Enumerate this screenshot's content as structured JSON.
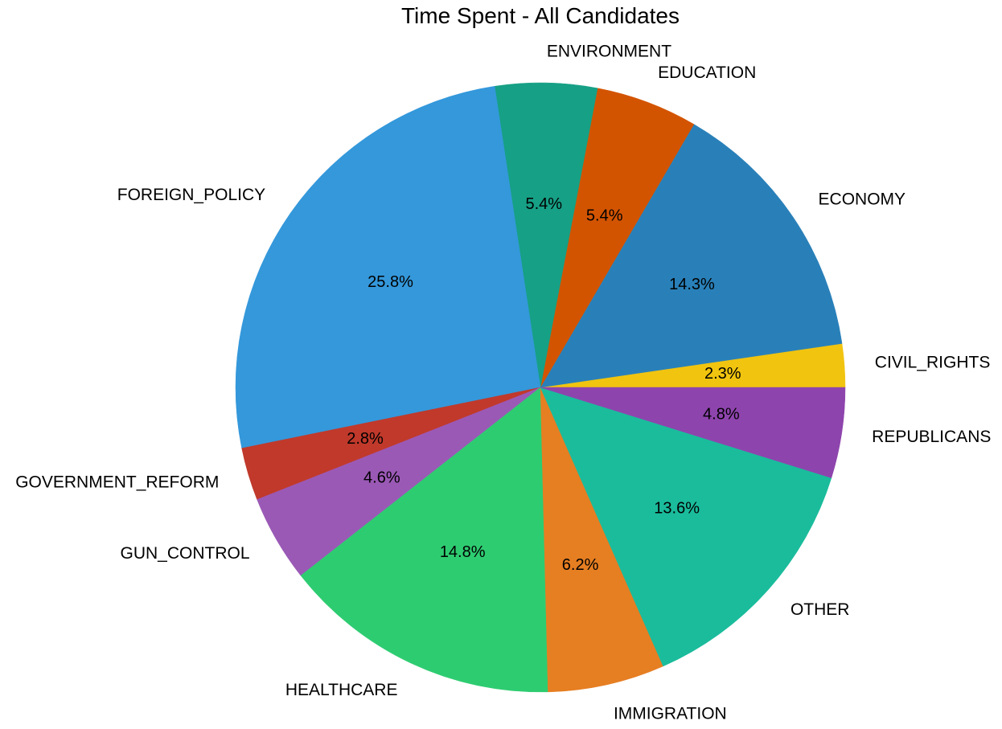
{
  "chart_data": {
    "type": "pie",
    "title": "Time Spent - All Candidates",
    "start_angle_deg": 0,
    "direction": "counterclockwise",
    "slices": [
      {
        "label": "CIVIL_RIGHTS",
        "value": 2.3,
        "pct_label": "2.3%",
        "color": "#f1c40f"
      },
      {
        "label": "ECONOMY",
        "value": 14.3,
        "pct_label": "14.3%",
        "color": "#2980b9"
      },
      {
        "label": "EDUCATION",
        "value": 5.4,
        "pct_label": "5.4%",
        "color": "#d35400"
      },
      {
        "label": "ENVIRONMENT",
        "value": 5.4,
        "pct_label": "5.4%",
        "color": "#16a085"
      },
      {
        "label": "FOREIGN_POLICY",
        "value": 25.8,
        "pct_label": "25.8%",
        "color": "#3498db"
      },
      {
        "label": "GOVERNMENT_REFORM",
        "value": 2.8,
        "pct_label": "2.8%",
        "color": "#c0392b"
      },
      {
        "label": "GUN_CONTROL",
        "value": 4.6,
        "pct_label": "4.6%",
        "color": "#9b59b6"
      },
      {
        "label": "HEALTHCARE",
        "value": 14.8,
        "pct_label": "14.8%",
        "color": "#2ecc71"
      },
      {
        "label": "IMMIGRATION",
        "value": 6.2,
        "pct_label": "6.2%",
        "color": "#e67e22"
      },
      {
        "label": "OTHER",
        "value": 13.6,
        "pct_label": "13.6%",
        "color": "#1abc9c"
      },
      {
        "label": "REPUBLICANS",
        "value": 4.8,
        "pct_label": "4.8%",
        "color": "#8e44ad"
      }
    ]
  }
}
